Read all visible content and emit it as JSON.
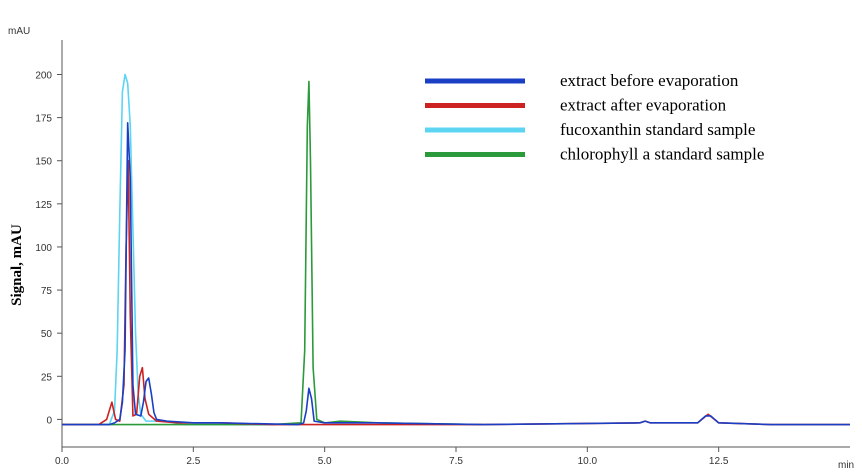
{
  "chart_data": {
    "type": "line",
    "y_unit_label": "mAU",
    "x_unit_label": "min",
    "ylabel": "Signal, mAU",
    "xlim": [
      0,
      15
    ],
    "ylim": [
      -16,
      220
    ],
    "xticks": [
      {
        "value": 0,
        "label": "0.0"
      },
      2.5,
      {
        "value": 5,
        "label": "5.0"
      },
      7.5,
      {
        "value": 10,
        "label": "10.0"
      },
      12.5
    ],
    "yticks": [
      0,
      25,
      50,
      75,
      100,
      125,
      150,
      175,
      200
    ],
    "grid": false,
    "legend_position": "upper right",
    "series": [
      {
        "name": "extract before evaporation",
        "color": "#1a3fc4",
        "x": [
          0,
          0.9,
          1.0,
          1.1,
          1.15,
          1.2,
          1.25,
          1.3,
          1.35,
          1.4,
          1.5,
          1.55,
          1.6,
          1.65,
          1.7,
          1.75,
          1.8,
          2.0,
          2.5,
          3.0,
          4.5,
          4.6,
          4.65,
          4.7,
          4.75,
          4.8,
          5.0,
          6.0,
          8.0,
          11.0,
          11.1,
          11.2,
          12.1,
          12.25,
          12.35,
          12.5,
          13.5,
          15
        ],
        "values": [
          -3,
          -3,
          -2,
          0,
          10,
          40,
          172,
          140,
          20,
          3,
          2,
          10,
          22,
          24,
          15,
          4,
          0,
          -1,
          -2,
          -2,
          -3,
          -2,
          5,
          18,
          12,
          -1,
          -2,
          -2,
          -3,
          -2,
          -1,
          -2,
          -2,
          2,
          2,
          -2,
          -3,
          -3
        ]
      },
      {
        "name": "extract after evaporation",
        "color": "#cc2222",
        "x": [
          0,
          0.7,
          0.85,
          0.95,
          1.02,
          1.1,
          1.18,
          1.22,
          1.26,
          1.3,
          1.35,
          1.42,
          1.48,
          1.53,
          1.58,
          1.65,
          1.8,
          2.2,
          3.0,
          4.0,
          8.0,
          11.0,
          11.1,
          11.2,
          12.1,
          12.3,
          12.5,
          13.5,
          15
        ],
        "values": [
          -3,
          -3,
          0,
          10,
          0,
          -1,
          20,
          100,
          150,
          60,
          2,
          3,
          25,
          30,
          12,
          3,
          -1,
          -2,
          -2,
          -3,
          -3,
          -2,
          -1,
          -2,
          -2,
          3,
          -2,
          -3,
          -3
        ]
      },
      {
        "name": "fucoxanthin standard sample",
        "color": "#5cd4f2",
        "x": [
          0,
          0.9,
          1.0,
          1.05,
          1.1,
          1.15,
          1.2,
          1.25,
          1.3,
          1.35,
          1.4,
          1.45,
          1.5,
          1.6,
          2.0,
          2.3,
          4.5
        ],
        "values": [
          -3,
          -3,
          5,
          40,
          120,
          190,
          200,
          195,
          170,
          110,
          50,
          15,
          3,
          -1,
          -1,
          -3,
          -3
        ]
      },
      {
        "name": "chlorophyll a standard sample",
        "color": "#2a9a3a",
        "x": [
          0,
          4.0,
          4.55,
          4.62,
          4.67,
          4.7,
          4.73,
          4.78,
          4.85,
          5.0,
          5.3,
          6.0,
          8.0
        ],
        "values": [
          -3,
          -3,
          -2,
          40,
          170,
          196,
          150,
          30,
          0,
          -2,
          -1,
          -2,
          -3
        ]
      }
    ]
  }
}
